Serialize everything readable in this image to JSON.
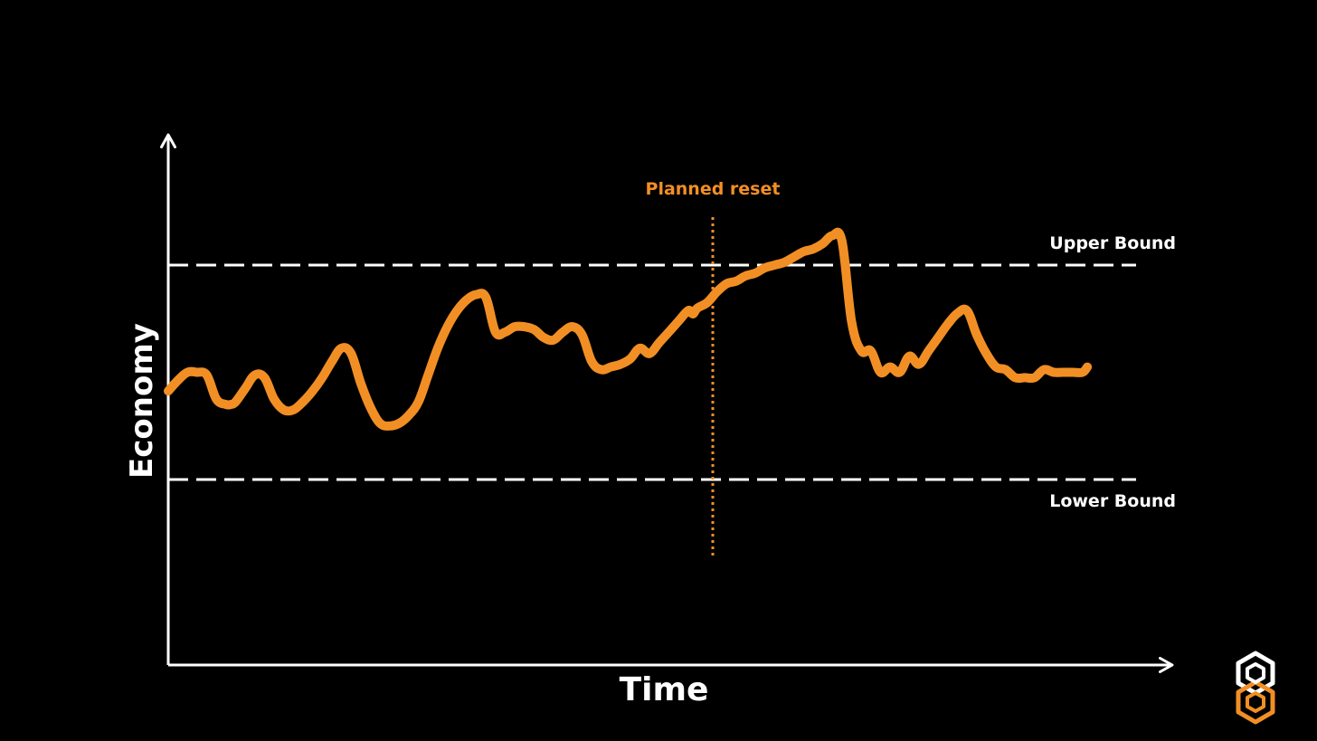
{
  "chart_data": {
    "type": "line",
    "title": "",
    "xlabel": "Time",
    "ylabel": "Economy",
    "xlim": [
      0,
      100
    ],
    "ylim": [
      0,
      100
    ],
    "grid": false,
    "x": [
      0,
      1,
      2,
      3,
      4,
      5,
      6,
      6.5,
      7,
      8,
      9,
      10,
      11,
      12,
      13,
      14,
      15,
      16,
      17,
      18,
      19,
      20,
      21,
      22,
      23,
      24,
      25,
      26,
      27,
      28,
      29,
      30,
      31,
      32,
      33,
      34,
      35,
      36,
      37,
      38,
      39,
      40,
      41,
      42,
      43,
      44,
      45,
      46,
      47,
      48,
      49,
      50,
      51,
      52,
      53,
      54,
      54.4,
      54.6,
      55,
      56,
      57,
      58,
      59,
      60,
      61,
      62,
      63,
      64,
      65,
      66,
      67,
      68,
      69,
      70,
      71,
      72,
      73,
      74,
      75,
      76,
      77,
      78,
      79,
      80,
      81,
      82,
      83,
      84,
      85,
      86,
      87,
      88,
      89,
      90,
      91,
      92,
      93,
      94,
      95,
      95.5
    ],
    "series": [
      {
        "values": [
          51.5,
          53.5,
          55,
          55,
          54.5,
          50,
          49,
          49,
          49.5,
          52,
          54.5,
          54,
          50,
          48,
          48,
          49.5,
          51.5,
          54,
          57,
          59.5,
          58.5,
          53,
          48.5,
          45.5,
          45,
          45.5,
          47,
          49.5,
          54.5,
          59.5,
          63.5,
          66.5,
          68.5,
          69.5,
          69,
          62.5,
          62.5,
          63.5,
          63.5,
          63,
          61.5,
          61,
          62.5,
          63.5,
          62,
          57,
          55.5,
          56,
          56.5,
          57.5,
          59.5,
          58.5,
          60.5,
          62.5,
          64.5,
          66.5,
          66,
          66,
          67,
          68,
          70,
          71.5,
          72,
          73,
          73.5,
          74.5,
          75,
          75.5,
          76.5,
          77.5,
          78,
          79,
          80.5,
          79.5,
          64.5,
          59,
          59,
          55,
          56,
          55,
          58,
          56.5,
          59,
          61.5,
          64,
          66,
          66.5,
          62,
          58.5,
          56,
          55.5,
          54,
          54,
          54,
          55.5,
          55,
          55,
          55,
          55,
          56
        ],
        "color": "#F28F24"
      }
    ],
    "reference_lines": [
      {
        "label": "Upper Bound",
        "y": 75,
        "style": "dashed",
        "color": "#FFFFFF"
      },
      {
        "label": "Lower Bound",
        "y": 35,
        "style": "dashed",
        "color": "#FFFFFF"
      }
    ],
    "annotations": [
      {
        "label": "Planned reset",
        "x": 54.4,
        "style": "dotted",
        "color": "#F28F24"
      }
    ]
  },
  "logo": {
    "name": "hexagon-logo",
    "colors": [
      "#FFFFFF",
      "#F28F24"
    ]
  }
}
